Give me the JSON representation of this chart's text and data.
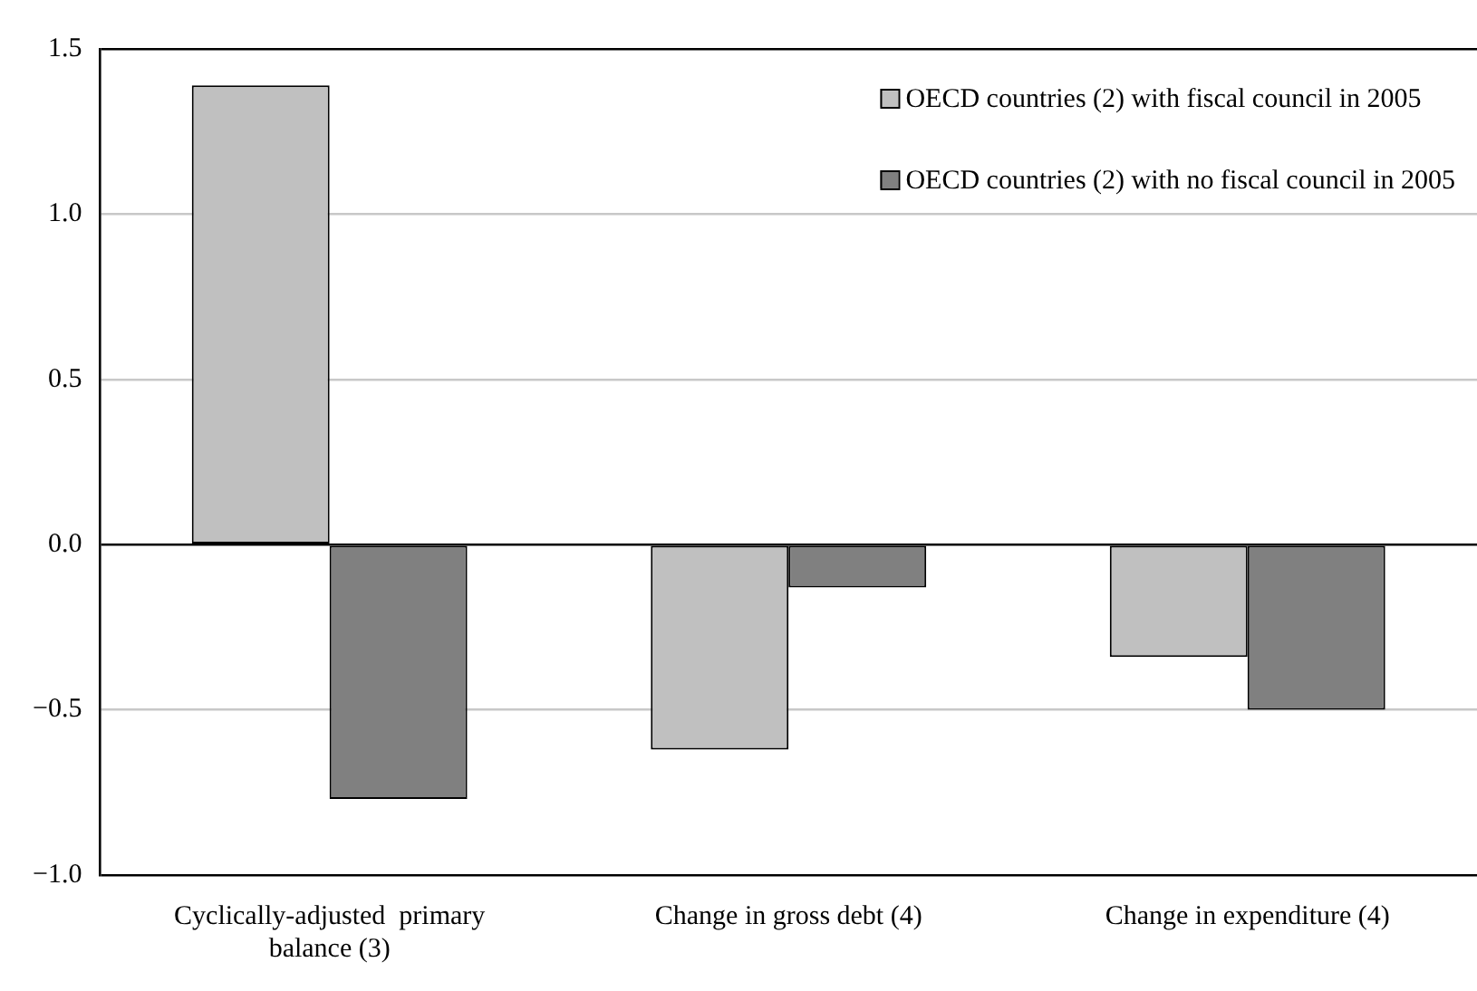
{
  "chart_data": {
    "type": "bar",
    "categories": [
      "Cyclically-adjusted  primary balance (3)",
      "Change in gross debt (4)",
      "Change in expenditure (4)"
    ],
    "series": [
      {
        "name": "OECD countries (2) with fiscal council in 2005",
        "color": "#c0c0c0",
        "values": [
          1.39,
          -0.62,
          -0.34
        ]
      },
      {
        "name": "OECD countries (2) with no fiscal council in 2005",
        "color": "#808080",
        "values": [
          -0.77,
          -0.13,
          -0.5
        ]
      }
    ],
    "ylim": [
      -1.0,
      1.5
    ],
    "yticks": [
      {
        "value": -1.0,
        "label": "−1.0"
      },
      {
        "value": -0.5,
        "label": "−0.5"
      },
      {
        "value": 0,
        "label": "0.0"
      },
      {
        "value": 0.5,
        "label": "0.5"
      },
      {
        "value": 1.0,
        "label": "1.0"
      },
      {
        "value": 1.5,
        "label": "1.5"
      }
    ],
    "grid": "y",
    "legend": "top right"
  }
}
